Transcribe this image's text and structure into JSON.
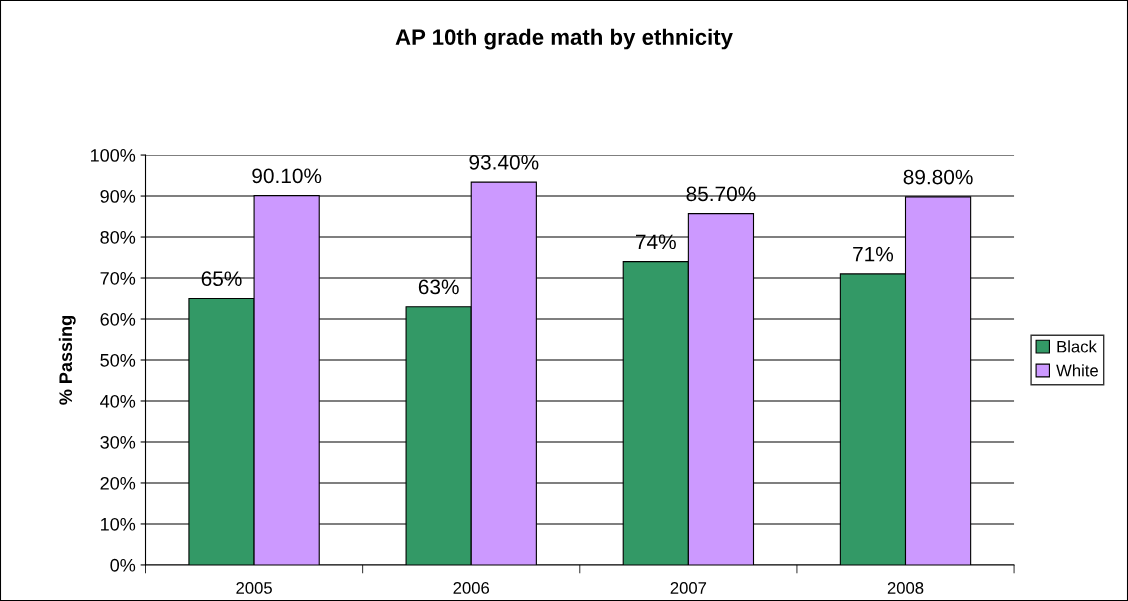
{
  "chart_data": {
    "type": "bar",
    "title": "AP 10th grade math by ethnicity",
    "ylabel": "% Passing",
    "categories": [
      "2005",
      "2006",
      "2007",
      "2008"
    ],
    "series": [
      {
        "name": "Black",
        "color": "#339966",
        "values": [
          65,
          63,
          74,
          71
        ],
        "value_labels": [
          "65%",
          "63%",
          "74%",
          "71%"
        ]
      },
      {
        "name": "White",
        "color": "#cc99ff",
        "values": [
          90.1,
          93.4,
          85.7,
          89.8
        ],
        "value_labels": [
          "90.10%",
          "93.40%",
          "85.70%",
          "89.80%"
        ]
      }
    ],
    "ylim": [
      0,
      100
    ],
    "yticks": [
      {
        "value": 0,
        "label": "0%"
      },
      {
        "value": 10,
        "label": "10%"
      },
      {
        "value": 20,
        "label": "20%"
      },
      {
        "value": 30,
        "label": "30%"
      },
      {
        "value": 40,
        "label": "40%"
      },
      {
        "value": 50,
        "label": "50%"
      },
      {
        "value": 60,
        "label": "60%"
      },
      {
        "value": 70,
        "label": "70%"
      },
      {
        "value": 80,
        "label": "80%"
      },
      {
        "value": 90,
        "label": "90%"
      },
      {
        "value": 100,
        "label": "100%"
      }
    ],
    "grid": "y",
    "legend": "right"
  }
}
